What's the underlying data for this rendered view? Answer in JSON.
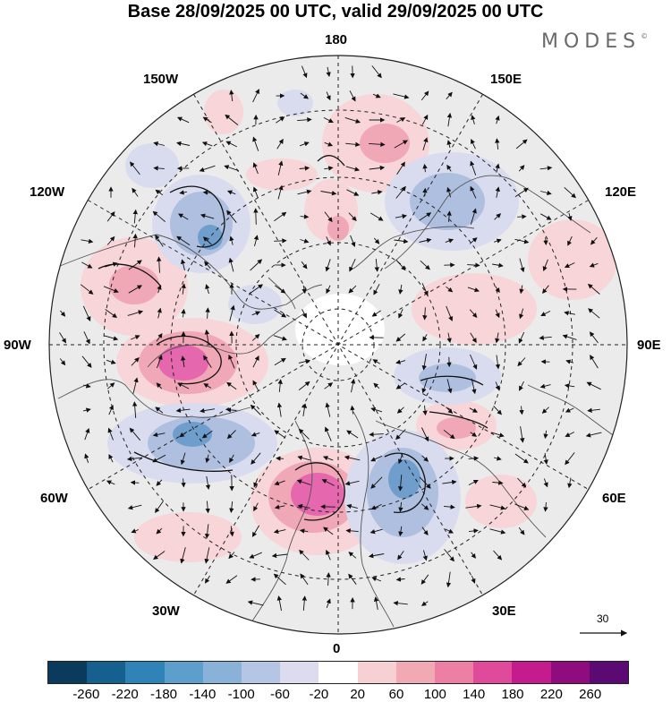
{
  "title": "Base 28/09/2025 00 UTC, valid 29/09/2025 00 UTC",
  "brand": "MODES",
  "brand_mark": "©",
  "longitude_labels": {
    "top": "180",
    "bottom": "0",
    "left": "90W",
    "right": "90E",
    "upper_left_1": "150W",
    "upper_left_2": "120W",
    "upper_right_1": "150E",
    "upper_right_2": "120E",
    "lower_left_1": "60W",
    "lower_left_2": "30W",
    "lower_right_1": "60E",
    "lower_right_2": "30E"
  },
  "wind_reference": {
    "label": "30",
    "icon": "arrow-right-icon"
  },
  "colorbar": {
    "colors": [
      "#0b3b5c",
      "#15608f",
      "#2f83b7",
      "#5c9fcc",
      "#8ab1d8",
      "#b5c5e4",
      "#dcdcee",
      "#ffffff",
      "#f6d0d2",
      "#f1a9b4",
      "#ec7fa3",
      "#e04a9a",
      "#c41c8c",
      "#8f0c7e",
      "#5a0a72"
    ],
    "tick_labels": [
      "-260",
      "-220",
      "-180",
      "-140",
      "-100",
      "-60",
      "-20",
      "20",
      "60",
      "100",
      "140",
      "180",
      "220",
      "260"
    ]
  },
  "anomaly_colors": {
    "neg_weak": "#d8dcee",
    "neg_mid": "#aebfe0",
    "neg_strong": "#6f9ecd",
    "pos_weak": "#f7d5d8",
    "pos_mid": "#f0a8b6",
    "pos_strong": "#e567ad",
    "land": "#e3e3e3"
  }
}
